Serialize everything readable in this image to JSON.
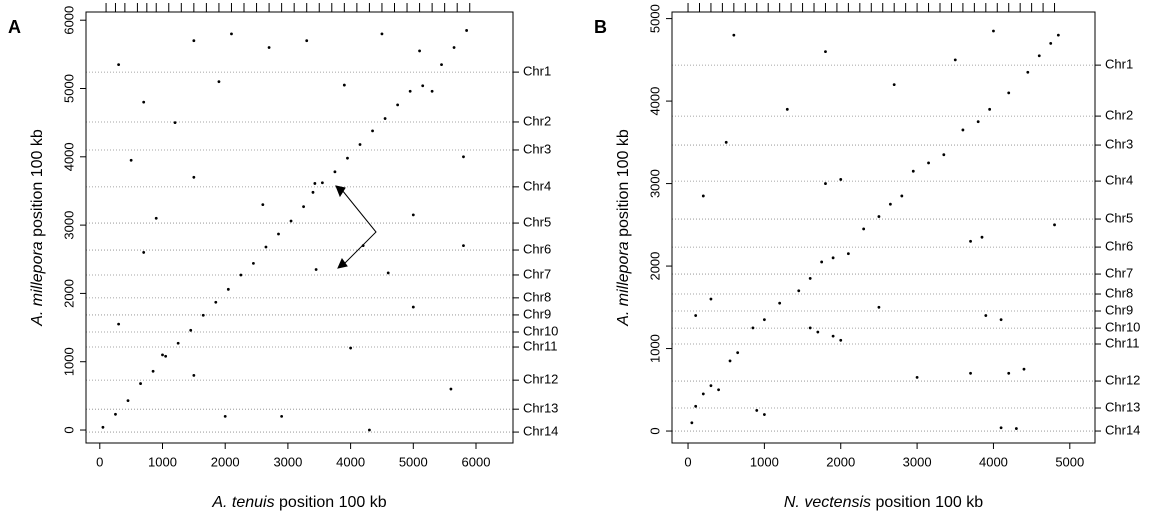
{
  "chart_data": [
    {
      "type": "scatter",
      "panel_label": "A",
      "x_label_species": "A. tenuis",
      "x_label_rest": "position 100 kb",
      "y_label_species": "A. millepora",
      "y_label_rest": "position 100 kb",
      "xlim": [
        -220,
        6590
      ],
      "ylim": [
        -190,
        6120
      ],
      "xticks": [
        0,
        1000,
        2000,
        3000,
        4000,
        5000,
        6000
      ],
      "yticks": [
        0,
        1000,
        2000,
        3000,
        4000,
        5000,
        6000
      ],
      "y2lim": [
        -190,
        6120
      ],
      "y2ticks": [
        {
          "value": 5240,
          "label": "Chr1"
        },
        {
          "value": 4510,
          "label": "Chr2"
        },
        {
          "value": 4100,
          "label": "Chr3"
        },
        {
          "value": 3560,
          "label": "Chr4"
        },
        {
          "value": 3030,
          "label": "Chr5"
        },
        {
          "value": 2635,
          "label": "Chr6"
        },
        {
          "value": 2270,
          "label": "Chr7"
        },
        {
          "value": 1935,
          "label": "Chr8"
        },
        {
          "value": 1685,
          "label": "Chr9"
        },
        {
          "value": 1435,
          "label": "Chr10"
        },
        {
          "value": 1215,
          "label": "Chr11"
        },
        {
          "value": 730,
          "label": "Chr12"
        },
        {
          "value": 305,
          "label": "Chr13"
        },
        {
          "value": -30,
          "label": "Chr14"
        }
      ],
      "rug": [
        100,
        250,
        400,
        600,
        750,
        900,
        1100,
        1300,
        1500,
        1700,
        1900,
        2100,
        2300,
        2500,
        2700,
        2900,
        3100,
        3300,
        3500,
        3700,
        3900,
        4100,
        4300,
        4500,
        4700,
        4900,
        5100,
        5300,
        5500,
        5700,
        5900
      ],
      "series": [
        {
          "color": "#000000",
          "x": [
            50,
            250,
            450,
            650,
            850,
            1050,
            1250,
            1450,
            1650,
            1850,
            2050,
            2250,
            2450,
            2650,
            2850,
            3050,
            3250,
            3400,
            3550,
            3750,
            3950,
            4150,
            4350,
            4550,
            4750,
            4950,
            5150,
            5300,
            5450,
            5650,
            5850,
            3450,
            3430,
            300,
            700,
            1200,
            1500,
            1900,
            2100,
            2700,
            3300,
            3900,
            4500,
            5100,
            500,
            900,
            1500,
            2600,
            4200,
            5000,
            5800,
            300,
            700,
            1000,
            1500,
            2000,
            2900,
            4300,
            5600,
            5000,
            4000,
            4600,
            5800
          ],
          "values": [
            40,
            230,
            430,
            680,
            860,
            1080,
            1270,
            1460,
            1680,
            1870,
            2060,
            2270,
            2440,
            2680,
            2870,
            3060,
            3270,
            3480,
            3620,
            3780,
            3980,
            4180,
            4380,
            4560,
            4760,
            4960,
            5040,
            4960,
            5350,
            5600,
            5850,
            2350,
            3610,
            5350,
            4800,
            4500,
            5700,
            5100,
            5800,
            5600,
            5700,
            5050,
            5800,
            5550,
            3950,
            3100,
            3700,
            3300,
            2700,
            3150,
            2700,
            1550,
            2600,
            1100,
            800,
            200,
            200,
            0,
            600,
            1800,
            1200,
            2300,
            4000
          ]
        }
      ]
    },
    {
      "type": "scatter",
      "panel_label": "B",
      "x_label_species": "N. vectensis",
      "x_label_rest": "position 100 kb",
      "y_label_species": "A. millepora",
      "y_label_rest": "position 100 kb",
      "xlim": [
        -210,
        5330
      ],
      "ylim": [
        -145,
        5080
      ],
      "xticks": [
        0,
        1000,
        2000,
        3000,
        4000,
        5000
      ],
      "yticks": [
        0,
        1000,
        2000,
        3000,
        4000,
        5000
      ],
      "y2lim": [
        -145,
        5080
      ],
      "y2ticks": [
        {
          "value": 4436,
          "label": "Chr1"
        },
        {
          "value": 3818,
          "label": "Chr2"
        },
        {
          "value": 3467,
          "label": "Chr3"
        },
        {
          "value": 3030,
          "label": "Chr4"
        },
        {
          "value": 2570,
          "label": "Chr5"
        },
        {
          "value": 2230,
          "label": "Chr6"
        },
        {
          "value": 1903,
          "label": "Chr7"
        },
        {
          "value": 1661,
          "label": "Chr8"
        },
        {
          "value": 1455,
          "label": "Chr9"
        },
        {
          "value": 1248,
          "label": "Chr10"
        },
        {
          "value": 1055,
          "label": "Chr11"
        },
        {
          "value": 606,
          "label": "Chr12"
        },
        {
          "value": 279,
          "label": "Chr13"
        },
        {
          "value": 0,
          "label": "Chr14"
        }
      ],
      "rug": [
        0,
        150,
        300,
        450,
        600,
        750,
        900,
        1050,
        1200,
        1350,
        1500,
        1650,
        1800,
        1950,
        2100,
        2250,
        2400,
        2550,
        2700,
        2850,
        3000,
        3150,
        3300,
        3450,
        3600,
        3750,
        3900,
        4050,
        4200,
        4350,
        4500,
        4650,
        4800
      ],
      "series": [
        {
          "color": "#000000",
          "x": [
            50,
            100,
            200,
            300,
            400,
            550,
            650,
            850,
            1000,
            1200,
            1450,
            1600,
            1750,
            1900,
            2100,
            2300,
            2500,
            2650,
            2800,
            2950,
            3150,
            3350,
            3600,
            3800,
            3950,
            4200,
            4450,
            4600,
            4750,
            4850,
            1700,
            1900,
            2000,
            1600,
            4200,
            4400,
            3700,
            4100,
            4300,
            900,
            1000,
            1800,
            2000,
            3700,
            3850,
            3900,
            4100,
            200,
            300,
            100,
            3500,
            4000,
            600,
            1800,
            2700,
            3000,
            4800,
            2500,
            1300,
            500
          ],
          "values": [
            100,
            300,
            450,
            550,
            500,
            850,
            950,
            1250,
            1350,
            1550,
            1700,
            1850,
            2050,
            2100,
            2150,
            2450,
            2600,
            2750,
            2850,
            3150,
            3250,
            3350,
            3650,
            3750,
            3900,
            4100,
            4350,
            4550,
            4700,
            4800,
            1200,
            1150,
            1100,
            1250,
            700,
            750,
            700,
            40,
            30,
            250,
            200,
            3000,
            3050,
            2300,
            2350,
            1400,
            1350,
            2850,
            1600,
            1400,
            4500,
            4850,
            4800,
            4600,
            4200,
            650,
            2500,
            1500,
            3900,
            3500
          ]
        }
      ]
    }
  ]
}
